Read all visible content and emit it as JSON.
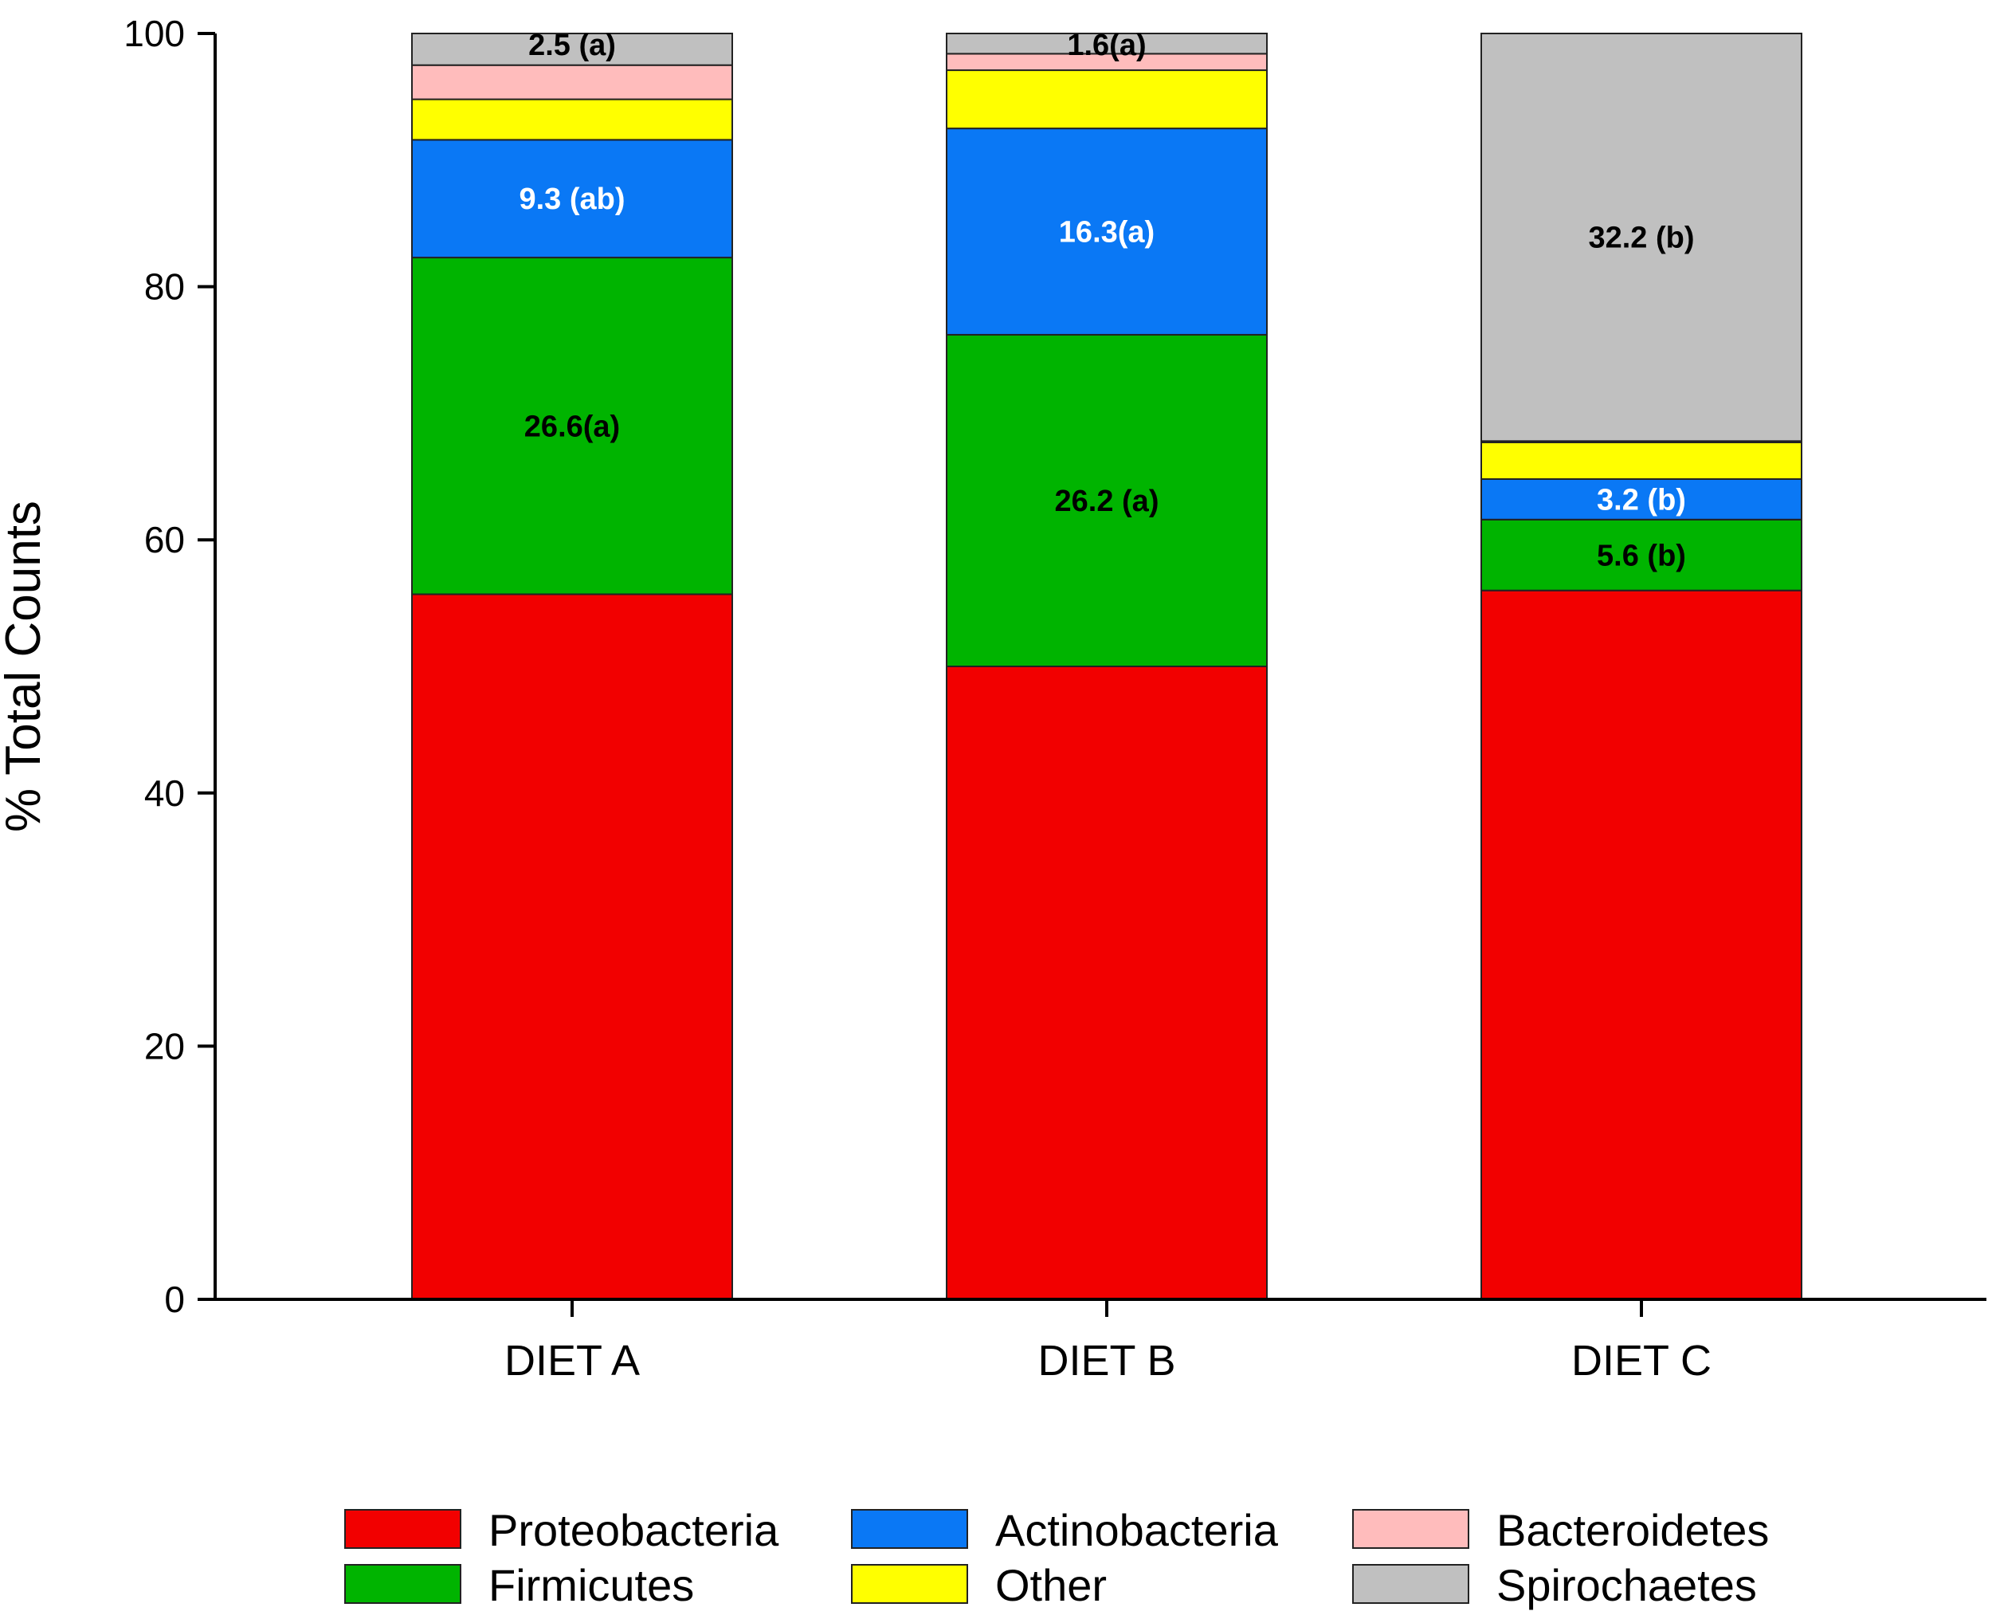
{
  "chart_data": {
    "type": "bar",
    "stacked": true,
    "title": "",
    "xlabel": "",
    "ylabel": "% Total Counts",
    "ylim": [
      0,
      100
    ],
    "yticks": [
      0,
      20,
      40,
      60,
      80,
      100
    ],
    "grid": false,
    "legend_position": "bottom",
    "categories": [
      "DIET A",
      "DIET B",
      "DIET C"
    ],
    "series": [
      {
        "name": "Proteobacteria",
        "color": "#f20000",
        "values": [
          55.7,
          50.0,
          56.0
        ]
      },
      {
        "name": "Firmicutes",
        "color": "#00b400",
        "values": [
          26.6,
          26.2,
          5.6
        ]
      },
      {
        "name": "Actinobacteria",
        "color": "#0a78f5",
        "values": [
          9.3,
          16.3,
          3.2
        ]
      },
      {
        "name": "Other",
        "color": "#ffff00",
        "values": [
          3.2,
          4.6,
          2.9
        ]
      },
      {
        "name": "Bacteroidetes",
        "color": "#ffbcbc",
        "values": [
          2.7,
          1.3,
          0.1
        ]
      },
      {
        "name": "Spirochaetes",
        "color": "#c0c0c0",
        "values": [
          2.5,
          1.6,
          32.2
        ]
      }
    ],
    "annotations": [
      {
        "category": "DIET A",
        "series": "Spirochaetes",
        "text": "2.5 (a)",
        "color": "#000000"
      },
      {
        "category": "DIET A",
        "series": "Actinobacteria",
        "text": "9.3 (ab)",
        "color": "#ffffff"
      },
      {
        "category": "DIET A",
        "series": "Firmicutes",
        "text": "26.6(a)",
        "color": "#000000"
      },
      {
        "category": "DIET B",
        "series": "Spirochaetes",
        "text": "1.6(a)",
        "color": "#000000"
      },
      {
        "category": "DIET B",
        "series": "Actinobacteria",
        "text": "16.3(a)",
        "color": "#ffffff"
      },
      {
        "category": "DIET B",
        "series": "Firmicutes",
        "text": "26.2 (a)",
        "color": "#000000"
      },
      {
        "category": "DIET C",
        "series": "Spirochaetes",
        "text": "32.2 (b)",
        "color": "#000000"
      },
      {
        "category": "DIET C",
        "series": "Actinobacteria",
        "text": "3.2 (b)",
        "color": "#ffffff"
      },
      {
        "category": "DIET C",
        "series": "Firmicutes",
        "text": "5.6 (b)",
        "color": "#000000"
      }
    ],
    "legend_order": [
      "Proteobacteria",
      "Actinobacteria",
      "Bacteroidetes",
      "Firmicutes",
      "Other",
      "Spirochaetes"
    ]
  }
}
